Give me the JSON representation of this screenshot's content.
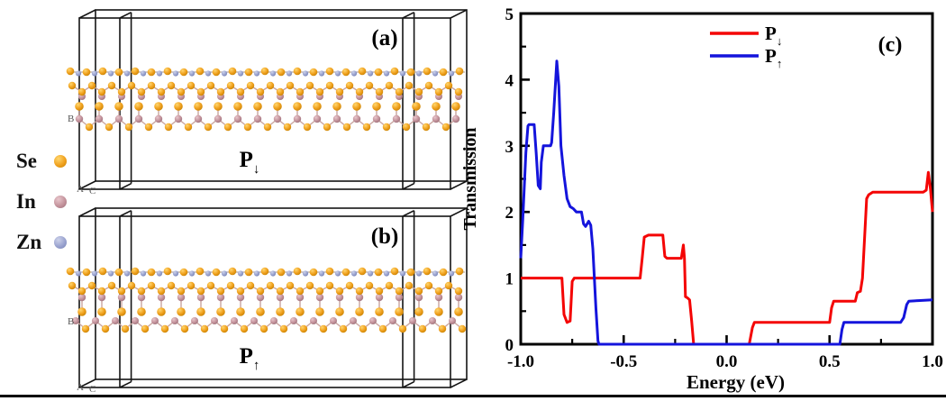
{
  "figure_legend": {
    "items": [
      {
        "symbol": "Se",
        "color": "#f0a11e",
        "highlight": "#ffd66e",
        "edge": "#c47f00"
      },
      {
        "symbol": "In",
        "color": "#c4939c",
        "highlight": "#e8c6cc",
        "edge": "#9a6e78"
      },
      {
        "symbol": "Zn",
        "color": "#9aa3cf",
        "highlight": "#cdd2ea",
        "edge": "#7480b4"
      }
    ]
  },
  "panels": [
    {
      "id": "a",
      "label": "(a)",
      "pol_base": "P",
      "pol_arrow": "↓",
      "variant": "down",
      "corner_left": "B",
      "corner_bottom_a": "A",
      "corner_bottom_c": "C"
    },
    {
      "id": "b",
      "label": "(b)",
      "pol_base": "P",
      "pol_arrow": "↑",
      "variant": "up",
      "corner_left": "B",
      "corner_bottom_a": "A",
      "corner_bottom_c": "C"
    }
  ],
  "chart_data": {
    "type": "line",
    "title": "",
    "xlabel": "Energy (eV)",
    "ylabel": "Transmission",
    "panel_label": "(c)",
    "xlim": [
      -1.0,
      1.0
    ],
    "ylim": [
      0,
      5
    ],
    "x_major_ticks": [
      -1.0,
      -0.5,
      0.0,
      0.5,
      1.0
    ],
    "x_tick_labels": [
      "-1.0",
      "-0.5",
      "0.0",
      "0.5",
      "1.0"
    ],
    "y_major_ticks": [
      0,
      1,
      2,
      3,
      4,
      5
    ],
    "y_tick_labels": [
      "0",
      "1",
      "2",
      "3",
      "4",
      "5"
    ],
    "x_minor_ticks": [
      -0.75,
      -0.25,
      0.25,
      0.75
    ],
    "y_minor_ticks": [
      0.5,
      1.5,
      2.5,
      3.5,
      4.5
    ],
    "grid": false,
    "legend_position": "top-center",
    "axis_color": "#000000",
    "series": [
      {
        "name": "P down",
        "label_base": "P",
        "label_sub": "↓",
        "color": "#f40505",
        "points": [
          [
            -1.0,
            1.0
          ],
          [
            -0.8,
            1.0
          ],
          [
            -0.79,
            0.45
          ],
          [
            -0.775,
            0.33
          ],
          [
            -0.76,
            0.35
          ],
          [
            -0.75,
            0.95
          ],
          [
            -0.74,
            1.0
          ],
          [
            -0.42,
            1.0
          ],
          [
            -0.41,
            1.3
          ],
          [
            -0.4,
            1.62
          ],
          [
            -0.38,
            1.65
          ],
          [
            -0.31,
            1.65
          ],
          [
            -0.3,
            1.33
          ],
          [
            -0.29,
            1.3
          ],
          [
            -0.22,
            1.3
          ],
          [
            -0.21,
            1.5
          ],
          [
            -0.205,
            1.3
          ],
          [
            -0.2,
            0.72
          ],
          [
            -0.19,
            0.7
          ],
          [
            -0.18,
            0.67
          ],
          [
            -0.17,
            0.35
          ],
          [
            -0.16,
            0.0
          ],
          [
            0.11,
            0.0
          ],
          [
            0.125,
            0.25
          ],
          [
            0.135,
            0.33
          ],
          [
            0.5,
            0.33
          ],
          [
            0.51,
            0.55
          ],
          [
            0.52,
            0.65
          ],
          [
            0.625,
            0.65
          ],
          [
            0.635,
            0.78
          ],
          [
            0.65,
            0.8
          ],
          [
            0.66,
            1.0
          ],
          [
            0.68,
            2.2
          ],
          [
            0.69,
            2.26
          ],
          [
            0.71,
            2.3
          ],
          [
            0.955,
            2.3
          ],
          [
            0.97,
            2.33
          ],
          [
            0.98,
            2.6
          ],
          [
            0.99,
            2.35
          ],
          [
            1.0,
            2.0
          ]
        ]
      },
      {
        "name": "P up",
        "label_base": "P",
        "label_sub": "↑",
        "color": "#1414dc",
        "points": [
          [
            -1.0,
            1.3
          ],
          [
            -0.99,
            1.9
          ],
          [
            -0.975,
            2.9
          ],
          [
            -0.965,
            3.3
          ],
          [
            -0.96,
            3.32
          ],
          [
            -0.935,
            3.32
          ],
          [
            -0.925,
            2.9
          ],
          [
            -0.915,
            2.4
          ],
          [
            -0.905,
            2.35
          ],
          [
            -0.9,
            2.75
          ],
          [
            -0.89,
            3.0
          ],
          [
            -0.855,
            3.0
          ],
          [
            -0.85,
            3.05
          ],
          [
            -0.84,
            3.5
          ],
          [
            -0.825,
            4.28
          ],
          [
            -0.815,
            3.9
          ],
          [
            -0.805,
            3.0
          ],
          [
            -0.79,
            2.55
          ],
          [
            -0.775,
            2.2
          ],
          [
            -0.76,
            2.08
          ],
          [
            -0.745,
            2.05
          ],
          [
            -0.73,
            2.0
          ],
          [
            -0.705,
            2.0
          ],
          [
            -0.695,
            1.82
          ],
          [
            -0.685,
            1.78
          ],
          [
            -0.67,
            1.86
          ],
          [
            -0.66,
            1.8
          ],
          [
            -0.65,
            1.45
          ],
          [
            -0.635,
            0.55
          ],
          [
            -0.625,
            0.05
          ],
          [
            -0.62,
            0.0
          ],
          [
            0.55,
            0.0
          ],
          [
            0.56,
            0.22
          ],
          [
            0.57,
            0.33
          ],
          [
            0.845,
            0.33
          ],
          [
            0.86,
            0.4
          ],
          [
            0.875,
            0.6
          ],
          [
            0.885,
            0.65
          ],
          [
            0.93,
            0.66
          ],
          [
            1.0,
            0.67
          ]
        ]
      }
    ]
  }
}
